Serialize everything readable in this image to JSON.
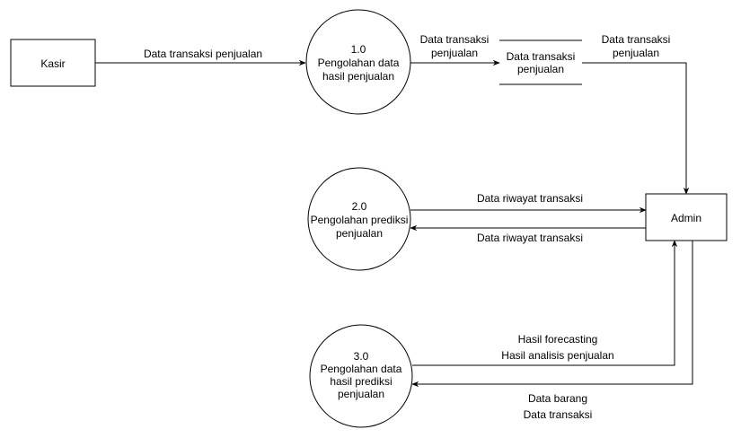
{
  "diagram": {
    "entities": {
      "kasir": "Kasir",
      "admin": "Admin"
    },
    "processes": {
      "p1": {
        "number": "1.0",
        "line1": "Pengolahan data",
        "line2": "hasil penjualan"
      },
      "p2": {
        "number": "2.0",
        "line1": "Pengolahan prediksi",
        "line2": "penjualan"
      },
      "p3": {
        "number": "3.0",
        "line1": "Pengolahan data",
        "line2": "hasil prediksi",
        "line3": "penjualan"
      }
    },
    "datastore": {
      "line1": "Data transaksi",
      "line2": "penjualan"
    },
    "flows": {
      "kasir_to_p1": "Data transaksi penjualan",
      "p1_to_store": {
        "line1": "Data transaksi",
        "line2": "penjualan"
      },
      "store_to_admin": {
        "line1": "Data transaksi",
        "line2": "penjualan"
      },
      "p2_to_admin": "Data riwayat transaksi",
      "admin_to_p2": "Data riwayat transaksi",
      "p3_to_admin": {
        "line1": "Hasil forecasting",
        "line2": "Hasil analisis penjualan"
      },
      "admin_to_p3": {
        "line1": "Data barang",
        "line2": "Data transaksi"
      }
    },
    "colors": {
      "stroke": "#000000",
      "fill": "#ffffff"
    }
  }
}
